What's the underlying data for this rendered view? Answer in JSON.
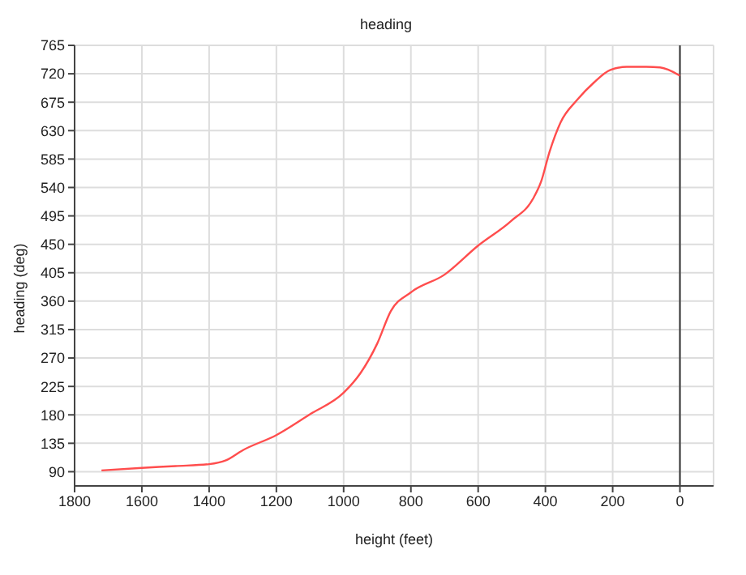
{
  "chart_data": {
    "type": "line",
    "title": "heading",
    "xlabel": "height (feet)",
    "ylabel": "heading (deg)",
    "x": [
      1720,
      1600,
      1500,
      1400,
      1350,
      1300,
      1200,
      1100,
      1000,
      950,
      900,
      860,
      800,
      700,
      600,
      502,
      437,
      413,
      388,
      355,
      305,
      256,
      207,
      158,
      100,
      59,
      0
    ],
    "series": [
      {
        "color": "#ff4d4d",
        "values": [
          92,
          96,
          99,
          102,
          108,
          124,
          148,
          181,
          215,
          246,
          293,
          344,
          374,
          402,
          448,
          487,
          522,
          549,
          596,
          643,
          679,
          706,
          726,
          731,
          731,
          730,
          717
        ]
      }
    ],
    "xlim": [
      1800,
      -100
    ],
    "xticks": [
      1800,
      1600,
      1400,
      1200,
      1000,
      800,
      600,
      400,
      200,
      0
    ],
    "ylim": [
      67.5,
      765
    ],
    "yticks": [
      90,
      135,
      180,
      225,
      270,
      315,
      360,
      405,
      450,
      495,
      540,
      585,
      630,
      675,
      720,
      765
    ],
    "grid": true,
    "legend": false,
    "marker": "none",
    "line_style": "solid",
    "ref_lines": [
      {
        "axis": "x",
        "value": 0,
        "color": "#333333"
      }
    ]
  }
}
